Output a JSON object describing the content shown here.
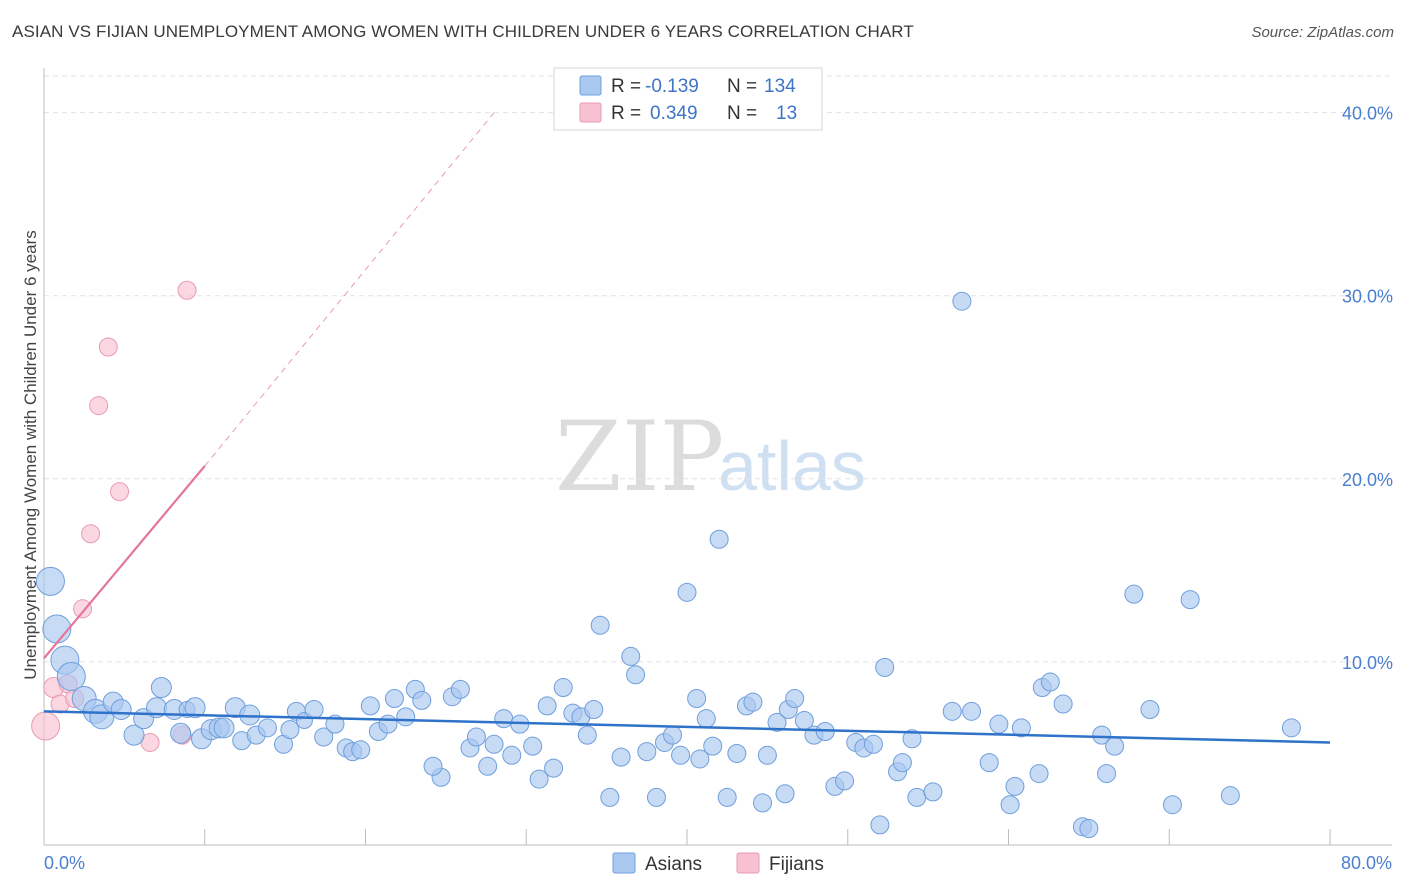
{
  "chart_data": {
    "type": "scatter",
    "title": "ASIAN VS FIJIAN UNEMPLOYMENT AMONG WOMEN WITH CHILDREN UNDER 6 YEARS CORRELATION CHART",
    "source": "Source: ZipAtlas.com",
    "xlabel": "",
    "ylabel": "Unemployment Among Women with Children Under 6 years",
    "xlim": [
      0,
      80
    ],
    "ylim": [
      0,
      42
    ],
    "x_tick_labels": [
      "0.0%",
      "80.0%"
    ],
    "y_ticks": [
      10,
      20,
      30,
      40
    ],
    "y_tick_labels": [
      "10.0%",
      "20.0%",
      "30.0%",
      "40.0%"
    ],
    "watermark": {
      "zip": "ZIP",
      "atlas": "atlas"
    },
    "legend": {
      "entries": [
        {
          "r_label": "R =",
          "r_value": "-0.139",
          "n_label": "N =",
          "n_value": "134"
        },
        {
          "r_label": "R =",
          "r_value": "0.349",
          "n_label": "N =",
          "n_value": "13"
        }
      ]
    },
    "bottom_legend": [
      "Asians",
      "Fijians"
    ],
    "colors": {
      "asians_fill": "#a9c8f0",
      "asians_stroke": "#6f9fdc",
      "asians_line": "#2f72c9",
      "fijians_fill": "#f7c1d1",
      "fijians_stroke": "#ea9ab3",
      "fijians_line": "#e5759a",
      "tick_color": "#4a7fcf",
      "grid": "#e2e2e2"
    },
    "series": [
      {
        "name": "Asians",
        "trend": {
          "x": [
            0,
            80
          ],
          "y": [
            7.3,
            5.6
          ]
        },
        "points": [
          [
            0.4,
            14.4,
            14
          ],
          [
            0.8,
            11.8,
            14
          ],
          [
            1.3,
            10.1,
            14
          ],
          [
            1.7,
            9.2,
            14
          ],
          [
            2.5,
            8.0,
            12
          ],
          [
            3.2,
            7.3,
            12
          ],
          [
            3.6,
            7.0,
            12
          ],
          [
            4.3,
            7.8,
            10
          ],
          [
            4.8,
            7.4,
            10
          ],
          [
            5.6,
            6.0,
            10
          ],
          [
            6.2,
            6.9,
            10
          ],
          [
            7.0,
            7.5,
            10
          ],
          [
            7.3,
            8.6,
            10
          ],
          [
            8.1,
            7.4,
            10
          ],
          [
            8.5,
            6.1,
            10
          ],
          [
            8.9,
            7.4,
            8
          ],
          [
            9.4,
            7.5,
            10
          ],
          [
            9.8,
            5.8,
            10
          ],
          [
            10.4,
            6.3,
            10
          ],
          [
            10.9,
            6.4,
            10
          ],
          [
            11.2,
            6.4,
            10
          ],
          [
            11.9,
            7.5,
            10
          ],
          [
            12.3,
            5.7,
            9
          ],
          [
            12.8,
            7.1,
            10
          ],
          [
            13.2,
            6.0,
            9
          ],
          [
            13.9,
            6.4,
            9
          ],
          [
            14.9,
            5.5,
            9
          ],
          [
            15.3,
            6.3,
            9
          ],
          [
            15.7,
            7.3,
            9
          ],
          [
            16.2,
            6.8,
            8
          ],
          [
            16.8,
            7.4,
            9
          ],
          [
            17.4,
            5.9,
            9
          ],
          [
            18.1,
            6.6,
            9
          ],
          [
            18.8,
            5.3,
            9
          ],
          [
            19.2,
            5.1,
            9
          ],
          [
            19.7,
            5.2,
            9
          ],
          [
            20.3,
            7.6,
            9
          ],
          [
            20.8,
            6.2,
            9
          ],
          [
            21.4,
            6.6,
            9
          ],
          [
            21.8,
            8.0,
            9
          ],
          [
            22.5,
            7.0,
            9
          ],
          [
            23.1,
            8.5,
            9
          ],
          [
            23.5,
            7.9,
            9
          ],
          [
            24.7,
            3.7,
            9
          ],
          [
            24.2,
            4.3,
            9
          ],
          [
            25.4,
            8.1,
            9
          ],
          [
            25.9,
            8.5,
            9
          ],
          [
            26.5,
            5.3,
            9
          ],
          [
            26.9,
            5.9,
            9
          ],
          [
            27.6,
            4.3,
            9
          ],
          [
            28.0,
            5.5,
            9
          ],
          [
            28.6,
            6.9,
            9
          ],
          [
            29.1,
            4.9,
            9
          ],
          [
            29.6,
            6.6,
            9
          ],
          [
            30.4,
            5.4,
            9
          ],
          [
            30.8,
            3.6,
            9
          ],
          [
            31.3,
            7.6,
            9
          ],
          [
            31.7,
            4.2,
            9
          ],
          [
            32.3,
            8.6,
            9
          ],
          [
            32.9,
            7.2,
            9
          ],
          [
            33.4,
            7.0,
            9
          ],
          [
            33.8,
            6.0,
            9
          ],
          [
            34.2,
            7.4,
            9
          ],
          [
            34.6,
            12.0,
            9
          ],
          [
            35.2,
            2.6,
            9
          ],
          [
            35.9,
            4.8,
            9
          ],
          [
            36.5,
            10.3,
            9
          ],
          [
            36.8,
            9.3,
            9
          ],
          [
            37.5,
            5.1,
            9
          ],
          [
            38.1,
            2.6,
            9
          ],
          [
            38.6,
            5.6,
            9
          ],
          [
            39.1,
            6.0,
            9
          ],
          [
            39.6,
            4.9,
            9
          ],
          [
            40.0,
            13.8,
            9
          ],
          [
            40.6,
            8.0,
            9
          ],
          [
            40.8,
            4.7,
            9
          ],
          [
            41.2,
            6.9,
            9
          ],
          [
            41.6,
            5.4,
            9
          ],
          [
            42.0,
            16.7,
            9
          ],
          [
            42.5,
            2.6,
            9
          ],
          [
            43.1,
            5.0,
            9
          ],
          [
            43.7,
            7.6,
            9
          ],
          [
            44.1,
            7.8,
            9
          ],
          [
            44.7,
            2.3,
            9
          ],
          [
            45.0,
            4.9,
            9
          ],
          [
            45.6,
            6.7,
            9
          ],
          [
            46.1,
            2.8,
            9
          ],
          [
            46.3,
            7.4,
            9
          ],
          [
            46.7,
            8.0,
            9
          ],
          [
            47.3,
            6.8,
            9
          ],
          [
            47.9,
            6.0,
            9
          ],
          [
            48.6,
            6.2,
            9
          ],
          [
            49.2,
            3.2,
            9
          ],
          [
            49.8,
            3.5,
            9
          ],
          [
            50.5,
            5.6,
            9
          ],
          [
            51.0,
            5.3,
            9
          ],
          [
            51.6,
            5.5,
            9
          ],
          [
            52.3,
            9.7,
            9
          ],
          [
            53.1,
            4.0,
            9
          ],
          [
            53.4,
            4.5,
            9
          ],
          [
            54.0,
            5.8,
            9
          ],
          [
            54.3,
            2.6,
            9
          ],
          [
            55.3,
            2.9,
            9
          ],
          [
            52.0,
            1.1,
            9
          ],
          [
            56.5,
            7.3,
            9
          ],
          [
            57.1,
            29.7,
            9
          ],
          [
            57.7,
            7.3,
            9
          ],
          [
            58.8,
            4.5,
            9
          ],
          [
            59.4,
            6.6,
            9
          ],
          [
            60.1,
            2.2,
            9
          ],
          [
            60.4,
            3.2,
            9
          ],
          [
            60.8,
            6.4,
            9
          ],
          [
            61.9,
            3.9,
            9
          ],
          [
            62.1,
            8.6,
            9
          ],
          [
            62.6,
            8.9,
            9
          ],
          [
            63.4,
            7.7,
            9
          ],
          [
            64.6,
            1.0,
            9
          ],
          [
            65.0,
            0.9,
            9
          ],
          [
            65.8,
            6.0,
            9
          ],
          [
            66.1,
            3.9,
            9
          ],
          [
            66.6,
            5.4,
            9
          ],
          [
            67.8,
            13.7,
            9
          ],
          [
            68.8,
            7.4,
            9
          ],
          [
            70.2,
            2.2,
            9
          ],
          [
            71.3,
            13.4,
            9
          ],
          [
            73.8,
            2.7,
            9
          ],
          [
            77.6,
            6.4,
            9
          ]
        ]
      },
      {
        "name": "Fijians",
        "trend": {
          "x": [
            0,
            10
          ],
          "y": [
            10.2,
            20.7
          ]
        },
        "dashed_extension": {
          "x": [
            10,
            28
          ],
          "y": [
            20.7,
            40.0
          ]
        },
        "points": [
          [
            0.1,
            6.5,
            14
          ],
          [
            0.6,
            8.6,
            10
          ],
          [
            1.0,
            7.7,
            9
          ],
          [
            1.5,
            8.8,
            9
          ],
          [
            1.9,
            8.0,
            9
          ],
          [
            2.4,
            12.9,
            9
          ],
          [
            2.9,
            17.0,
            9
          ],
          [
            3.4,
            24.0,
            9
          ],
          [
            4.0,
            27.2,
            9
          ],
          [
            4.7,
            19.3,
            9
          ],
          [
            6.6,
            5.6,
            9
          ],
          [
            8.6,
            6.0,
            9
          ],
          [
            8.9,
            30.3,
            9
          ]
        ]
      }
    ]
  }
}
